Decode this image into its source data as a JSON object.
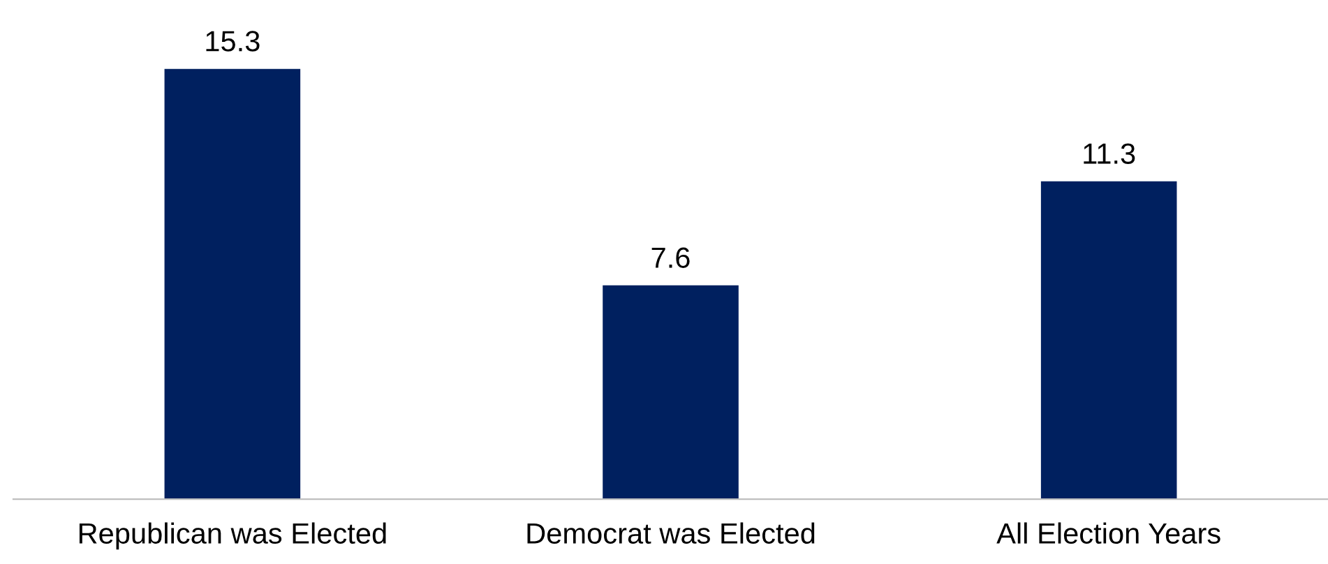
{
  "chart_data": {
    "type": "bar",
    "categories": [
      "Republican was Elected",
      "Democrat was Elected",
      "All Election Years"
    ],
    "values": [
      15.3,
      7.6,
      11.3
    ],
    "color": "#00205f",
    "data_labels": true,
    "grid": false,
    "legend": false
  }
}
